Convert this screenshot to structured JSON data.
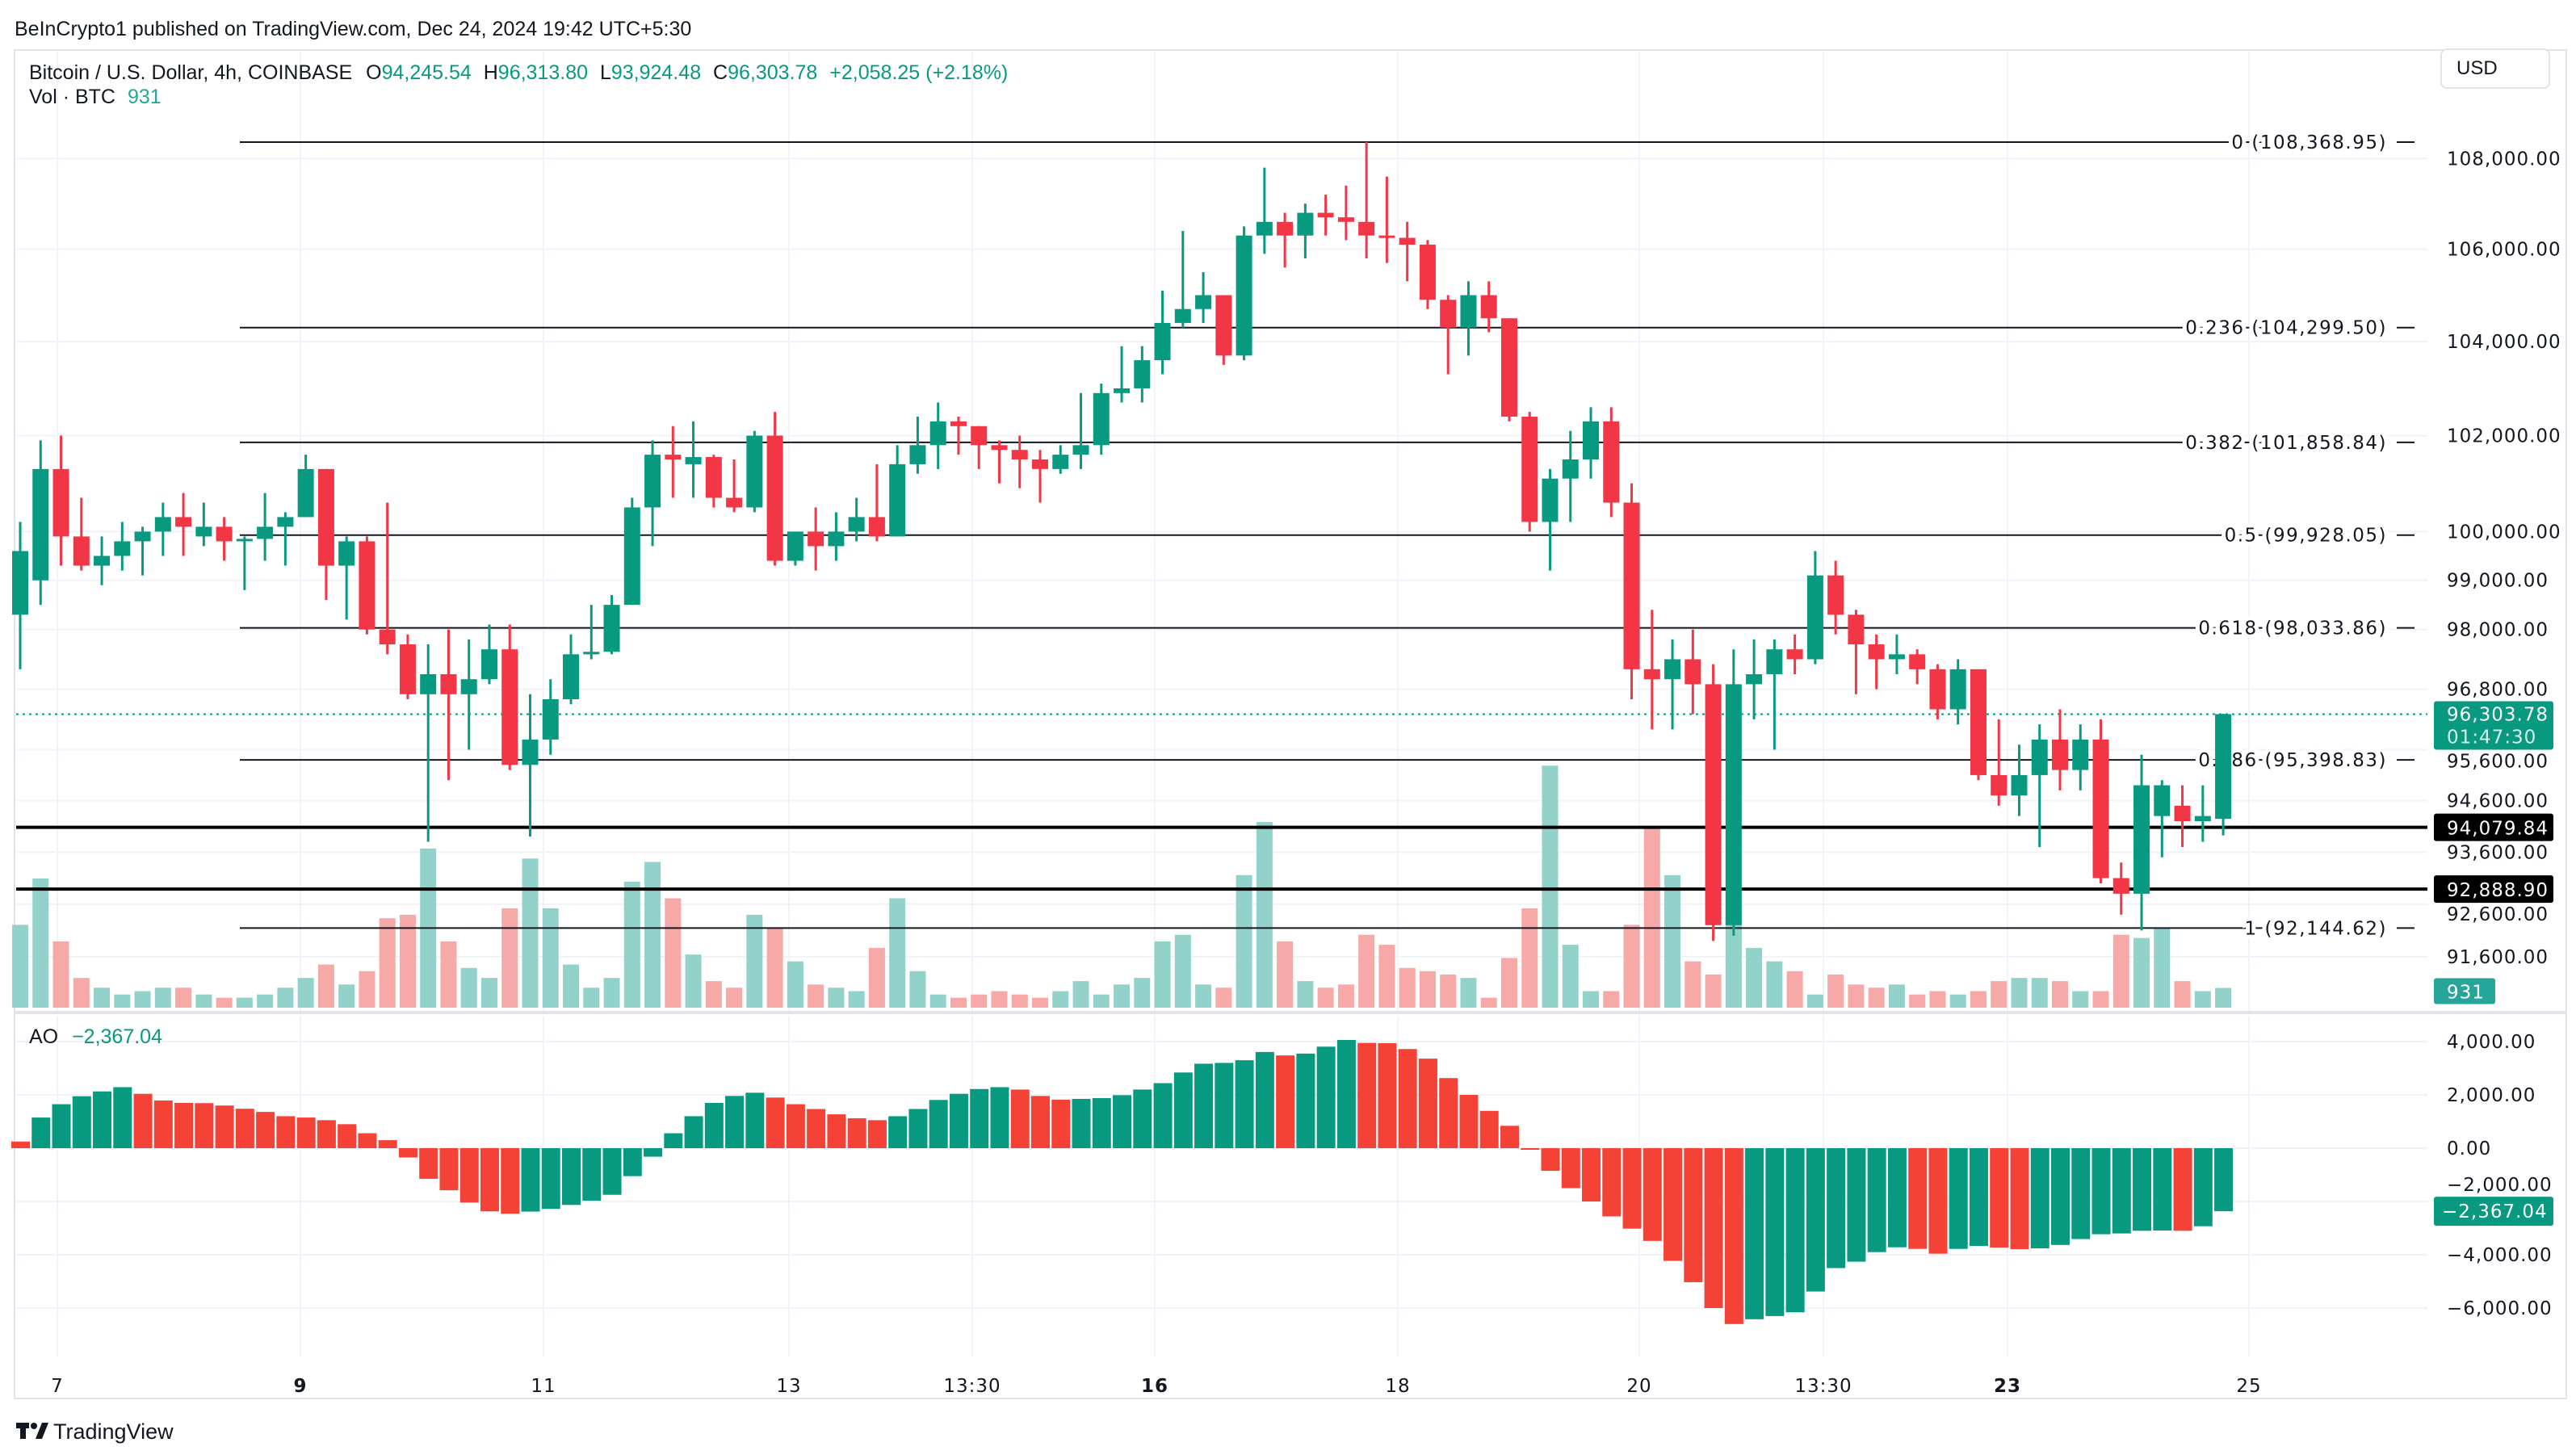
{
  "header": {
    "published": "BeInCrypto1 published on TradingView.com, Dec 24, 2024 19:42 UTC+5:30"
  },
  "legend": {
    "symbol": "Bitcoin / U.S. Dollar, 4h, COINBASE",
    "o_label": "O",
    "o": "94,245.54",
    "h_label": "H",
    "h": "96,313.80",
    "l_label": "L",
    "l": "93,924.48",
    "c_label": "C",
    "c": "96,303.78",
    "change": "+2,058.25 (+2.18%)"
  },
  "vol_legend": {
    "label": "Vol · BTC",
    "value": "931"
  },
  "currency_button": "USD",
  "price_axis": {
    "scale": "log",
    "ticks": [
      {
        "value": 108000,
        "label": "108,000.00"
      },
      {
        "value": 106000,
        "label": "106,000.00"
      },
      {
        "value": 104000,
        "label": "104,000.00"
      },
      {
        "value": 102000,
        "label": "102,000.00"
      },
      {
        "value": 100000,
        "label": "100,000.00"
      },
      {
        "value": 99000,
        "label": "99,000.00"
      },
      {
        "value": 98000,
        "label": "98,000.00"
      },
      {
        "value": 96800,
        "label": "96,800.00"
      },
      {
        "value": 95600,
        "label": "95,600.00"
      },
      {
        "value": 94600,
        "label": "94,600.00"
      },
      {
        "value": 93600,
        "label": "93,600.00"
      },
      {
        "value": 92600,
        "label": "92,600.00"
      },
      {
        "value": 91600,
        "label": "91,600.00"
      }
    ]
  },
  "fib_levels": [
    {
      "value": 108368.95,
      "label": "0 (108,368.95)"
    },
    {
      "value": 104299.5,
      "label": "0.236 (104,299.50)"
    },
    {
      "value": 101858.84,
      "label": "0.382 (101,858.84)"
    },
    {
      "value": 99928.05,
      "label": "0.5 (99,928.05)"
    },
    {
      "value": 98033.86,
      "label": "0.618 (98,033.86)"
    },
    {
      "value": 95398.83,
      "label": "0.786 (95,398.83)"
    },
    {
      "value": 92144.62,
      "label": "1 (92,144.62)"
    }
  ],
  "horizontal_lines": [
    {
      "value": 94079.84,
      "label": "94,079.84"
    },
    {
      "value": 92888.9,
      "label": "92,888.90"
    }
  ],
  "current_price": {
    "value": 96303.78,
    "label": "96,303.78",
    "countdown": "01:47:30"
  },
  "volume_badge": "931",
  "ao": {
    "label": "AO",
    "value_label": "−2,367.04",
    "value": -2367.04,
    "ticks": [
      {
        "value": 4000,
        "label": "4,000.00"
      },
      {
        "value": 2000,
        "label": "2,000.00"
      },
      {
        "value": 0,
        "label": "0.00"
      },
      {
        "value": -2000,
        "label": "−2,000.00"
      },
      {
        "value": -4000,
        "label": "−4,000.00"
      },
      {
        "value": -6000,
        "label": "−6,000.00"
      }
    ]
  },
  "x_axis": {
    "labels": [
      {
        "label": "7",
        "bold": false
      },
      {
        "label": "9",
        "bold": true
      },
      {
        "label": "11",
        "bold": false
      },
      {
        "label": "13",
        "bold": false
      },
      {
        "label": "13:30",
        "bold": false
      },
      {
        "label": "16",
        "bold": true
      },
      {
        "label": "18",
        "bold": false
      },
      {
        "label": "20",
        "bold": false
      },
      {
        "label": "13:30",
        "bold": false
      },
      {
        "label": "23",
        "bold": true
      },
      {
        "label": "25",
        "bold": false
      }
    ]
  },
  "footer": {
    "logo_text": "TradingView"
  },
  "colors": {
    "up": "#089981",
    "down": "#F23645",
    "ao_down": "#F44336",
    "vol_up": "#92D2CA",
    "vol_down": "#F7A9A7",
    "grid": "#F0F3FA"
  },
  "chart_data": {
    "type": "candlestick",
    "interval": "4h",
    "ylim": [
      91300,
      108800
    ],
    "candles_ohlc": [
      [
        98300,
        100200,
        97200,
        99600
      ],
      [
        99000,
        101900,
        98500,
        101300
      ],
      [
        101300,
        102000,
        99300,
        99900
      ],
      [
        99900,
        100700,
        99200,
        99300
      ],
      [
        99300,
        99900,
        98900,
        99500
      ],
      [
        99500,
        100200,
        99200,
        99800
      ],
      [
        99800,
        100100,
        99100,
        100000
      ],
      [
        100000,
        100600,
        99500,
        100300
      ],
      [
        100300,
        100800,
        99500,
        100100
      ],
      [
        99900,
        100600,
        99700,
        100100
      ],
      [
        100100,
        100300,
        99400,
        99800
      ],
      [
        99800,
        99900,
        98800,
        99850
      ],
      [
        99850,
        100800,
        99400,
        100100
      ],
      [
        100100,
        100400,
        99300,
        100300
      ],
      [
        100300,
        101600,
        100300,
        101300
      ],
      [
        101300,
        101300,
        98600,
        99300
      ],
      [
        99300,
        99900,
        98200,
        99800
      ],
      [
        99800,
        99900,
        97900,
        98000
      ],
      [
        98000,
        100600,
        97500,
        97700
      ],
      [
        97700,
        97900,
        96600,
        96700
      ],
      [
        96700,
        97700,
        93800,
        97100
      ],
      [
        97100,
        98000,
        95000,
        96700
      ],
      [
        96700,
        97800,
        95600,
        97000
      ],
      [
        97000,
        98100,
        96900,
        97600
      ],
      [
        97600,
        98100,
        95200,
        95300
      ],
      [
        95300,
        96700,
        93900,
        95800
      ],
      [
        95800,
        97000,
        95500,
        96600
      ],
      [
        96600,
        97900,
        96500,
        97500
      ],
      [
        97500,
        98500,
        97400,
        97550
      ],
      [
        97550,
        98700,
        97500,
        98500
      ],
      [
        98500,
        100700,
        98500,
        100500
      ],
      [
        100500,
        101900,
        99700,
        101600
      ],
      [
        101600,
        102200,
        100700,
        101500
      ],
      [
        101400,
        102300,
        100700,
        101550
      ],
      [
        101550,
        101600,
        100500,
        100700
      ],
      [
        100700,
        101500,
        100400,
        100500
      ],
      [
        100500,
        102100,
        100400,
        102000
      ],
      [
        102000,
        102500,
        99300,
        99400
      ],
      [
        99400,
        100000,
        99300,
        100000
      ],
      [
        100000,
        100500,
        99200,
        99700
      ],
      [
        99700,
        100400,
        99400,
        100000
      ],
      [
        100000,
        100700,
        99800,
        100300
      ],
      [
        100300,
        101400,
        99800,
        99900
      ],
      [
        99900,
        101800,
        99900,
        101400
      ],
      [
        101400,
        102400,
        101200,
        101800
      ],
      [
        101800,
        102700,
        101300,
        102300
      ],
      [
        102300,
        102400,
        101600,
        102200
      ],
      [
        102200,
        102200,
        101300,
        101800
      ],
      [
        101800,
        101900,
        101000,
        101700
      ],
      [
        101700,
        102000,
        100900,
        101500
      ],
      [
        101500,
        101700,
        100600,
        101300
      ],
      [
        101300,
        101800,
        101200,
        101600
      ],
      [
        101600,
        102900,
        101300,
        101800
      ],
      [
        101800,
        103100,
        101600,
        102900
      ],
      [
        102900,
        103900,
        102700,
        103000
      ],
      [
        103000,
        103900,
        102700,
        103600
      ],
      [
        103600,
        105100,
        103300,
        104400
      ],
      [
        104400,
        106400,
        104300,
        104700
      ],
      [
        104700,
        105500,
        104400,
        105000
      ],
      [
        105000,
        105000,
        103500,
        103700
      ],
      [
        103700,
        106500,
        103600,
        106300
      ],
      [
        106300,
        107800,
        105900,
        106600
      ],
      [
        106600,
        106800,
        105600,
        106300
      ],
      [
        106300,
        107000,
        105800,
        106800
      ],
      [
        106800,
        107200,
        106300,
        106700
      ],
      [
        106700,
        107400,
        106200,
        106600
      ],
      [
        106600,
        108369,
        105800,
        106300
      ],
      [
        106300,
        107600,
        105700,
        106250
      ],
      [
        106250,
        106600,
        105300,
        106100
      ],
      [
        106100,
        106200,
        104700,
        104900
      ],
      [
        104900,
        105000,
        103300,
        104300
      ],
      [
        104300,
        105300,
        103700,
        105000
      ],
      [
        105000,
        105300,
        104200,
        104500
      ],
      [
        104500,
        104500,
        102300,
        102400
      ],
      [
        102400,
        102500,
        100000,
        100200
      ],
      [
        100200,
        101300,
        99200,
        101100
      ],
      [
        101100,
        102100,
        100200,
        101500
      ],
      [
        101500,
        102600,
        101100,
        102300
      ],
      [
        102300,
        102600,
        100300,
        100600
      ],
      [
        100600,
        101000,
        96600,
        97200
      ],
      [
        97200,
        98400,
        96000,
        97000
      ],
      [
        97000,
        97800,
        96000,
        97400
      ],
      [
        97400,
        98000,
        96300,
        96900
      ],
      [
        96900,
        97300,
        91900,
        92200
      ],
      [
        92200,
        97600,
        92000,
        96900
      ],
      [
        96900,
        97800,
        96200,
        97100
      ],
      [
        97100,
        97800,
        95600,
        97600
      ],
      [
        97600,
        97900,
        97100,
        97400
      ],
      [
        97400,
        99600,
        97300,
        99100
      ],
      [
        99100,
        99400,
        97900,
        98300
      ],
      [
        98300,
        98400,
        96700,
        97700
      ],
      [
        97700,
        97900,
        96800,
        97400
      ],
      [
        97400,
        97900,
        97100,
        97500
      ],
      [
        97500,
        97600,
        96900,
        97200
      ],
      [
        97200,
        97300,
        96200,
        96400
      ],
      [
        96400,
        97400,
        96100,
        97200
      ],
      [
        97200,
        97200,
        95000,
        95100
      ],
      [
        95100,
        96200,
        94500,
        94700
      ],
      [
        94700,
        95700,
        94300,
        95100
      ],
      [
        95100,
        96100,
        93700,
        95800
      ],
      [
        95800,
        96400,
        94800,
        95200
      ],
      [
        95200,
        96100,
        94800,
        95800
      ],
      [
        95800,
        96200,
        93000,
        93100
      ],
      [
        93100,
        93400,
        92400,
        92800
      ],
      [
        92800,
        95500,
        92100,
        94900
      ],
      [
        94300,
        95000,
        93500,
        94900
      ],
      [
        94500,
        94900,
        93700,
        94200
      ],
      [
        94200,
        94900,
        93800,
        94300
      ],
      [
        94245.54,
        96313.8,
        93924.48,
        96303.78
      ]
    ],
    "volume": [
      3900,
      6080,
      3120,
      1400,
      940,
      620,
      780,
      940,
      940,
      620,
      470,
      470,
      620,
      940,
      1400,
      2030,
      1090,
      1720,
      4210,
      4370,
      7490,
      3120,
      1870,
      1400,
      4680,
      7020,
      4680,
      2030,
      940,
      1400,
      5930,
      6860,
      5150,
      2500,
      1250,
      940,
      4370,
      3740,
      2180,
      1090,
      940,
      780,
      2810,
      5150,
      1720,
      620,
      470,
      620,
      780,
      620,
      470,
      780,
      1250,
      620,
      1090,
      1400,
      3120,
      3430,
      1090,
      940,
      6240,
      8740,
      3120,
      1250,
      940,
      1090,
      3430,
      2960,
      1870,
      1720,
      1560,
      1400,
      470,
      2340,
      4680,
      11390,
      2960,
      780,
      780,
      3900,
      8420,
      6240,
      2180,
      1560,
      4370,
      2810,
      2180,
      1720,
      620,
      1560,
      1090,
      940,
      1090,
      620,
      780,
      620,
      780,
      1250,
      1400,
      1400,
      1250,
      780,
      780,
      3430,
      3280,
      3740,
      1250,
      780,
      931
    ],
    "volume_max": 11400,
    "ao_values": [
      250,
      1150,
      1650,
      1950,
      2130,
      2290,
      2040,
      1790,
      1700,
      1690,
      1600,
      1480,
      1360,
      1200,
      1150,
      1050,
      900,
      560,
      300,
      -350,
      -1150,
      -1580,
      -2040,
      -2370,
      -2460,
      -2380,
      -2280,
      -2130,
      -1970,
      -1750,
      -1050,
      -320,
      560,
      1200,
      1700,
      1960,
      2080,
      1900,
      1650,
      1470,
      1270,
      1120,
      1050,
      1200,
      1470,
      1810,
      2040,
      2220,
      2290,
      2200,
      1960,
      1820,
      1850,
      1880,
      1990,
      2200,
      2440,
      2840,
      3170,
      3200,
      3300,
      3610,
      3480,
      3550,
      3810,
      4060,
      3950,
      3940,
      3720,
      3360,
      2630,
      2000,
      1400,
      840,
      -50,
      -850,
      -1500,
      -2000,
      -2560,
      -3020,
      -3480,
      -4230,
      -5030,
      -6000,
      -6600,
      -6420,
      -6300,
      -6160,
      -5380,
      -4500,
      -4260,
      -3900,
      -3720,
      -3780,
      -3960,
      -3780,
      -3670,
      -3730,
      -3790,
      -3760,
      -3630,
      -3410,
      -3230,
      -3200,
      -3100,
      -3090,
      -3100,
      -2930,
      -2367.04
    ],
    "ao_ylim": [
      -7000,
      4500
    ]
  }
}
